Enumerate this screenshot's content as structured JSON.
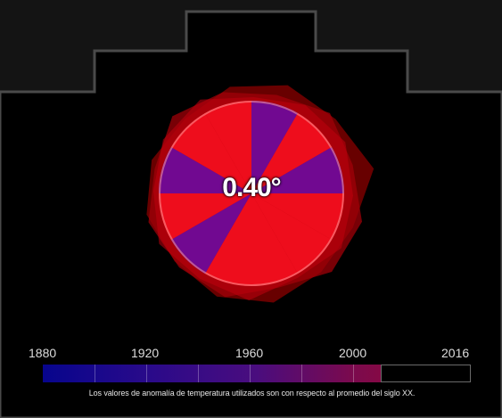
{
  "readout": {
    "anomaly": "0.40°",
    "anomaly_value": 0.4
  },
  "timeline": {
    "start_year": 1880,
    "end_year": 2016,
    "labels": [
      "1880",
      "1920",
      "1960",
      "2000",
      "2016"
    ],
    "current_year_fraction": 0.79,
    "gradient_colors": [
      "#07058d",
      "#4a0d7e",
      "#a4062a"
    ]
  },
  "footnote": "Los valores de anomalía de temperatura utilizados son con respecto al promedio del siglo XX.",
  "colors": {
    "background": "#000000",
    "warm": "#ff1020",
    "cool": "#6a0aa0",
    "outer_glow": "#8a0000"
  }
}
